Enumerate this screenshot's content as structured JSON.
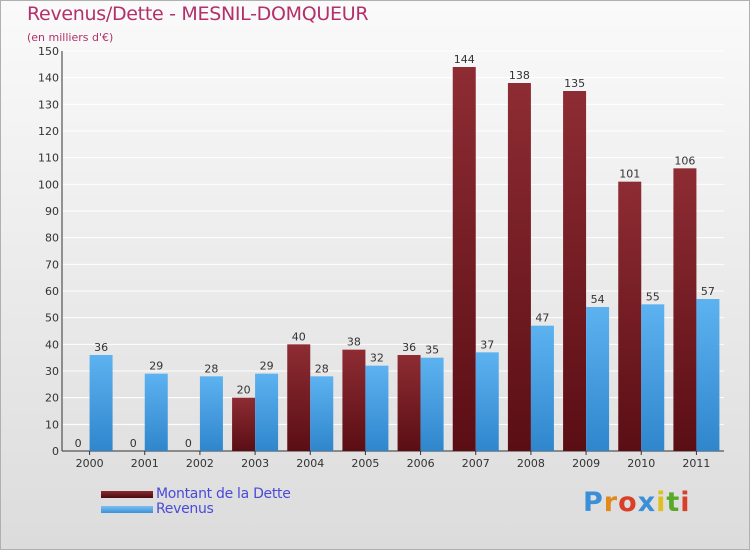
{
  "chart_data": {
    "type": "bar",
    "title": "Revenus/Dette - MESNIL-DOMQUEUR",
    "subtitle": "(en milliers d'€)",
    "xlabel": "",
    "ylabel": "",
    "ylim": [
      0,
      150
    ],
    "y_ticks": [
      0,
      10,
      20,
      30,
      40,
      50,
      60,
      70,
      80,
      90,
      100,
      110,
      120,
      130,
      140,
      150
    ],
    "grid": true,
    "categories": [
      "2000",
      "2001",
      "2002",
      "2003",
      "2004",
      "2005",
      "2006",
      "2007",
      "2008",
      "2009",
      "2010",
      "2011"
    ],
    "series": [
      {
        "name": "Montant de la Dette",
        "color": "#7a1c22",
        "values": [
          0,
          0,
          0,
          20,
          40,
          38,
          36,
          144,
          138,
          135,
          101,
          106
        ]
      },
      {
        "name": "Revenus",
        "color": "#4aa3e8",
        "values": [
          36,
          29,
          28,
          29,
          28,
          32,
          35,
          37,
          47,
          54,
          55,
          57
        ]
      }
    ],
    "legend_position": "bottom-left"
  },
  "logo": {
    "text": "Proxiti",
    "letters": [
      {
        "ch": "P",
        "color": "#3a8fd8"
      },
      {
        "ch": "r",
        "color": "#e08a1e"
      },
      {
        "ch": "o",
        "color": "#d8402a"
      },
      {
        "ch": "x",
        "color": "#3a8fd8"
      },
      {
        "ch": "i",
        "color": "#e0c01e"
      },
      {
        "ch": "t",
        "color": "#5aaa2a"
      },
      {
        "ch": "i",
        "color": "#d8402a"
      }
    ]
  }
}
